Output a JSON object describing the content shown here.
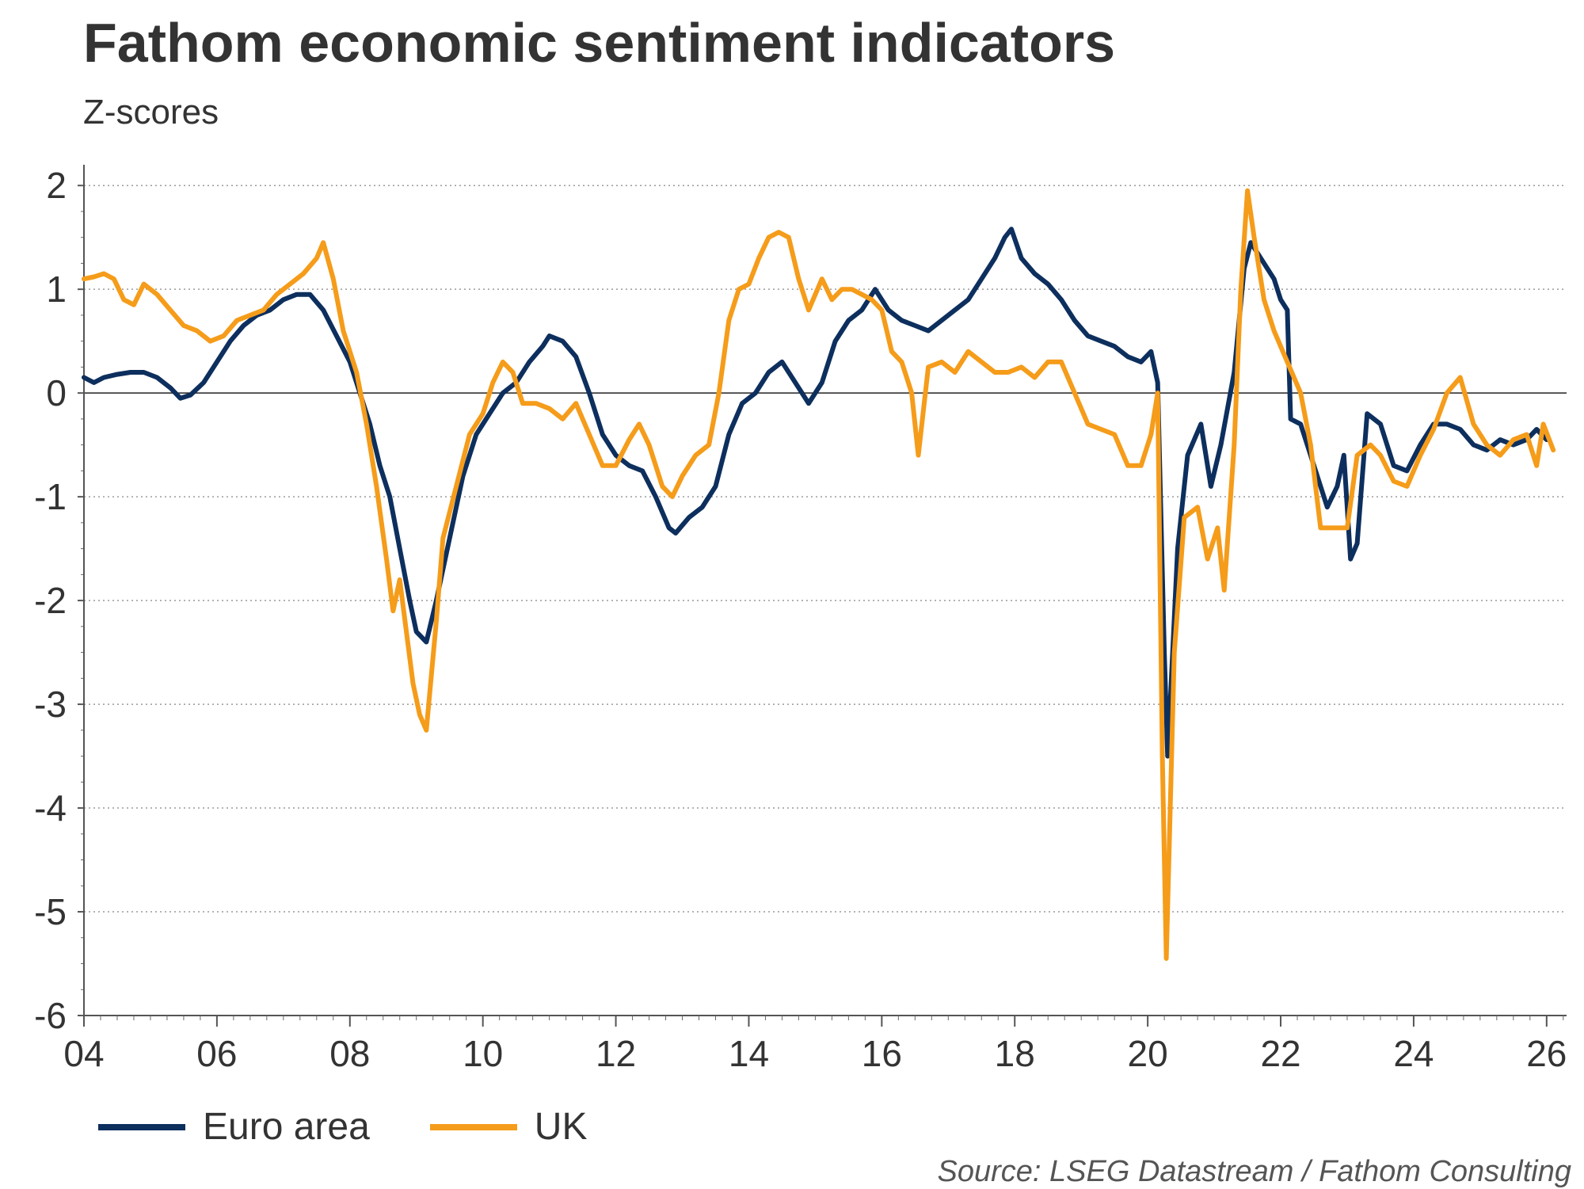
{
  "chart_data": {
    "type": "line",
    "title": "Fathom economic sentiment indicators",
    "subtitle": "Z-scores",
    "xlabel": "",
    "ylabel": "",
    "xlim": [
      2004,
      2026.3
    ],
    "ylim": [
      -6,
      2.2
    ],
    "yticks": [
      2,
      1,
      0,
      -1,
      -2,
      -3,
      -4,
      -5,
      -6
    ],
    "ytick_labels": [
      "2",
      "1",
      "0",
      "-1",
      "-2",
      "-3",
      "-4",
      "-5",
      "-6"
    ],
    "xticks": [
      2004,
      2006,
      2008,
      2010,
      2012,
      2014,
      2016,
      2018,
      2020,
      2022,
      2024,
      2026
    ],
    "xtick_labels": [
      "04",
      "06",
      "08",
      "10",
      "12",
      "14",
      "16",
      "18",
      "20",
      "22",
      "24",
      "26"
    ],
    "grid": "horizontal-dotted",
    "series": [
      {
        "name": "Euro area",
        "color": "#0d2f5e",
        "points": [
          [
            2004.0,
            0.15
          ],
          [
            2004.15,
            0.1
          ],
          [
            2004.3,
            0.15
          ],
          [
            2004.5,
            0.18
          ],
          [
            2004.7,
            0.2
          ],
          [
            2004.9,
            0.2
          ],
          [
            2005.1,
            0.15
          ],
          [
            2005.3,
            0.05
          ],
          [
            2005.45,
            -0.05
          ],
          [
            2005.6,
            -0.02
          ],
          [
            2005.8,
            0.1
          ],
          [
            2006.0,
            0.3
          ],
          [
            2006.2,
            0.5
          ],
          [
            2006.4,
            0.65
          ],
          [
            2006.6,
            0.75
          ],
          [
            2006.8,
            0.8
          ],
          [
            2007.0,
            0.9
          ],
          [
            2007.2,
            0.95
          ],
          [
            2007.4,
            0.95
          ],
          [
            2007.6,
            0.8
          ],
          [
            2007.8,
            0.55
          ],
          [
            2008.0,
            0.3
          ],
          [
            2008.15,
            0.0
          ],
          [
            2008.3,
            -0.3
          ],
          [
            2008.45,
            -0.7
          ],
          [
            2008.6,
            -1.0
          ],
          [
            2008.75,
            -1.5
          ],
          [
            2008.9,
            -2.0
          ],
          [
            2009.0,
            -2.3
          ],
          [
            2009.15,
            -2.4
          ],
          [
            2009.3,
            -2.0
          ],
          [
            2009.5,
            -1.4
          ],
          [
            2009.7,
            -0.8
          ],
          [
            2009.9,
            -0.4
          ],
          [
            2010.1,
            -0.2
          ],
          [
            2010.3,
            0.0
          ],
          [
            2010.5,
            0.1
          ],
          [
            2010.7,
            0.3
          ],
          [
            2010.9,
            0.45
          ],
          [
            2011.0,
            0.55
          ],
          [
            2011.2,
            0.5
          ],
          [
            2011.4,
            0.35
          ],
          [
            2011.6,
            0.0
          ],
          [
            2011.8,
            -0.4
          ],
          [
            2012.0,
            -0.6
          ],
          [
            2012.2,
            -0.7
          ],
          [
            2012.4,
            -0.75
          ],
          [
            2012.6,
            -1.0
          ],
          [
            2012.8,
            -1.3
          ],
          [
            2012.9,
            -1.35
          ],
          [
            2013.1,
            -1.2
          ],
          [
            2013.3,
            -1.1
          ],
          [
            2013.5,
            -0.9
          ],
          [
            2013.7,
            -0.4
          ],
          [
            2013.9,
            -0.1
          ],
          [
            2014.1,
            0.0
          ],
          [
            2014.3,
            0.2
          ],
          [
            2014.5,
            0.3
          ],
          [
            2014.7,
            0.1
          ],
          [
            2014.9,
            -0.1
          ],
          [
            2015.1,
            0.1
          ],
          [
            2015.3,
            0.5
          ],
          [
            2015.5,
            0.7
          ],
          [
            2015.7,
            0.8
          ],
          [
            2015.9,
            1.0
          ],
          [
            2016.1,
            0.8
          ],
          [
            2016.3,
            0.7
          ],
          [
            2016.5,
            0.65
          ],
          [
            2016.7,
            0.6
          ],
          [
            2016.9,
            0.7
          ],
          [
            2017.1,
            0.8
          ],
          [
            2017.3,
            0.9
          ],
          [
            2017.5,
            1.1
          ],
          [
            2017.7,
            1.3
          ],
          [
            2017.85,
            1.5
          ],
          [
            2017.95,
            1.58
          ],
          [
            2018.1,
            1.3
          ],
          [
            2018.3,
            1.15
          ],
          [
            2018.5,
            1.05
          ],
          [
            2018.7,
            0.9
          ],
          [
            2018.9,
            0.7
          ],
          [
            2019.1,
            0.55
          ],
          [
            2019.3,
            0.5
          ],
          [
            2019.5,
            0.45
          ],
          [
            2019.7,
            0.35
          ],
          [
            2019.9,
            0.3
          ],
          [
            2020.05,
            0.4
          ],
          [
            2020.15,
            0.1
          ],
          [
            2020.25,
            -2.5
          ],
          [
            2020.3,
            -3.5
          ],
          [
            2020.45,
            -1.5
          ],
          [
            2020.6,
            -0.6
          ],
          [
            2020.8,
            -0.3
          ],
          [
            2020.95,
            -0.9
          ],
          [
            2021.1,
            -0.5
          ],
          [
            2021.3,
            0.2
          ],
          [
            2021.45,
            1.2
          ],
          [
            2021.55,
            1.45
          ],
          [
            2021.7,
            1.3
          ],
          [
            2021.9,
            1.1
          ],
          [
            2022.0,
            0.9
          ],
          [
            2022.1,
            0.8
          ],
          [
            2022.15,
            -0.25
          ],
          [
            2022.3,
            -0.3
          ],
          [
            2022.5,
            -0.7
          ],
          [
            2022.7,
            -1.1
          ],
          [
            2022.85,
            -0.9
          ],
          [
            2022.95,
            -0.6
          ],
          [
            2023.05,
            -1.6
          ],
          [
            2023.15,
            -1.45
          ],
          [
            2023.3,
            -0.2
          ],
          [
            2023.5,
            -0.3
          ],
          [
            2023.7,
            -0.7
          ],
          [
            2023.9,
            -0.75
          ],
          [
            2024.1,
            -0.5
          ],
          [
            2024.3,
            -0.3
          ],
          [
            2024.5,
            -0.3
          ],
          [
            2024.7,
            -0.35
          ],
          [
            2024.9,
            -0.5
          ],
          [
            2025.1,
            -0.55
          ],
          [
            2025.3,
            -0.45
          ],
          [
            2025.5,
            -0.5
          ],
          [
            2025.7,
            -0.45
          ],
          [
            2025.85,
            -0.35
          ],
          [
            2026.0,
            -0.45
          ]
        ]
      },
      {
        "name": "UK",
        "color": "#f59c1a",
        "points": [
          [
            2004.0,
            1.1
          ],
          [
            2004.15,
            1.12
          ],
          [
            2004.3,
            1.15
          ],
          [
            2004.45,
            1.1
          ],
          [
            2004.6,
            0.9
          ],
          [
            2004.75,
            0.85
          ],
          [
            2004.9,
            1.05
          ],
          [
            2005.1,
            0.95
          ],
          [
            2005.3,
            0.8
          ],
          [
            2005.5,
            0.65
          ],
          [
            2005.7,
            0.6
          ],
          [
            2005.9,
            0.5
          ],
          [
            2006.1,
            0.55
          ],
          [
            2006.3,
            0.7
          ],
          [
            2006.5,
            0.75
          ],
          [
            2006.7,
            0.8
          ],
          [
            2006.9,
            0.95
          ],
          [
            2007.1,
            1.05
          ],
          [
            2007.3,
            1.15
          ],
          [
            2007.5,
            1.3
          ],
          [
            2007.6,
            1.45
          ],
          [
            2007.75,
            1.1
          ],
          [
            2007.9,
            0.6
          ],
          [
            2008.1,
            0.2
          ],
          [
            2008.25,
            -0.3
          ],
          [
            2008.4,
            -0.9
          ],
          [
            2008.55,
            -1.6
          ],
          [
            2008.65,
            -2.1
          ],
          [
            2008.75,
            -1.8
          ],
          [
            2008.85,
            -2.3
          ],
          [
            2008.95,
            -2.8
          ],
          [
            2009.05,
            -3.1
          ],
          [
            2009.15,
            -3.25
          ],
          [
            2009.3,
            -2.2
          ],
          [
            2009.4,
            -1.4
          ],
          [
            2009.6,
            -0.9
          ],
          [
            2009.8,
            -0.4
          ],
          [
            2010.0,
            -0.2
          ],
          [
            2010.15,
            0.1
          ],
          [
            2010.3,
            0.3
          ],
          [
            2010.45,
            0.2
          ],
          [
            2010.6,
            -0.1
          ],
          [
            2010.8,
            -0.1
          ],
          [
            2011.0,
            -0.15
          ],
          [
            2011.2,
            -0.25
          ],
          [
            2011.4,
            -0.1
          ],
          [
            2011.6,
            -0.4
          ],
          [
            2011.8,
            -0.7
          ],
          [
            2012.0,
            -0.7
          ],
          [
            2012.2,
            -0.45
          ],
          [
            2012.35,
            -0.3
          ],
          [
            2012.5,
            -0.5
          ],
          [
            2012.7,
            -0.9
          ],
          [
            2012.85,
            -1.0
          ],
          [
            2013.0,
            -0.8
          ],
          [
            2013.2,
            -0.6
          ],
          [
            2013.4,
            -0.5
          ],
          [
            2013.55,
            0.0
          ],
          [
            2013.7,
            0.7
          ],
          [
            2013.85,
            1.0
          ],
          [
            2014.0,
            1.05
          ],
          [
            2014.15,
            1.3
          ],
          [
            2014.3,
            1.5
          ],
          [
            2014.45,
            1.55
          ],
          [
            2014.6,
            1.5
          ],
          [
            2014.75,
            1.1
          ],
          [
            2014.9,
            0.8
          ],
          [
            2015.1,
            1.1
          ],
          [
            2015.25,
            0.9
          ],
          [
            2015.4,
            1.0
          ],
          [
            2015.55,
            1.0
          ],
          [
            2015.7,
            0.95
          ],
          [
            2015.85,
            0.9
          ],
          [
            2016.0,
            0.8
          ],
          [
            2016.15,
            0.4
          ],
          [
            2016.3,
            0.3
          ],
          [
            2016.45,
            0.0
          ],
          [
            2016.55,
            -0.6
          ],
          [
            2016.7,
            0.25
          ],
          [
            2016.9,
            0.3
          ],
          [
            2017.1,
            0.2
          ],
          [
            2017.3,
            0.4
          ],
          [
            2017.5,
            0.3
          ],
          [
            2017.7,
            0.2
          ],
          [
            2017.9,
            0.2
          ],
          [
            2018.1,
            0.25
          ],
          [
            2018.3,
            0.15
          ],
          [
            2018.5,
            0.3
          ],
          [
            2018.7,
            0.3
          ],
          [
            2018.9,
            0.0
          ],
          [
            2019.1,
            -0.3
          ],
          [
            2019.3,
            -0.35
          ],
          [
            2019.5,
            -0.4
          ],
          [
            2019.7,
            -0.7
          ],
          [
            2019.9,
            -0.7
          ],
          [
            2020.05,
            -0.4
          ],
          [
            2020.15,
            0.0
          ],
          [
            2020.22,
            -3.5
          ],
          [
            2020.28,
            -5.45
          ],
          [
            2020.4,
            -2.5
          ],
          [
            2020.55,
            -1.2
          ],
          [
            2020.75,
            -1.1
          ],
          [
            2020.9,
            -1.6
          ],
          [
            2021.05,
            -1.3
          ],
          [
            2021.15,
            -1.9
          ],
          [
            2021.3,
            -0.5
          ],
          [
            2021.4,
            1.0
          ],
          [
            2021.5,
            1.95
          ],
          [
            2021.6,
            1.5
          ],
          [
            2021.75,
            0.9
          ],
          [
            2021.9,
            0.6
          ],
          [
            2022.1,
            0.3
          ],
          [
            2022.3,
            0.0
          ],
          [
            2022.45,
            -0.5
          ],
          [
            2022.6,
            -1.3
          ],
          [
            2022.8,
            -1.3
          ],
          [
            2023.0,
            -1.3
          ],
          [
            2023.15,
            -0.6
          ],
          [
            2023.35,
            -0.5
          ],
          [
            2023.5,
            -0.6
          ],
          [
            2023.7,
            -0.85
          ],
          [
            2023.9,
            -0.9
          ],
          [
            2024.1,
            -0.6
          ],
          [
            2024.3,
            -0.35
          ],
          [
            2024.5,
            0.0
          ],
          [
            2024.7,
            0.15
          ],
          [
            2024.9,
            -0.3
          ],
          [
            2025.1,
            -0.5
          ],
          [
            2025.3,
            -0.6
          ],
          [
            2025.5,
            -0.45
          ],
          [
            2025.7,
            -0.4
          ],
          [
            2025.85,
            -0.7
          ],
          [
            2025.95,
            -0.3
          ],
          [
            2026.1,
            -0.55
          ]
        ]
      }
    ],
    "legend": {
      "position": "bottom-left",
      "entries": [
        "Euro area",
        "UK"
      ]
    },
    "source": "Source: LSEG Datastream / Fathom Consulting"
  }
}
